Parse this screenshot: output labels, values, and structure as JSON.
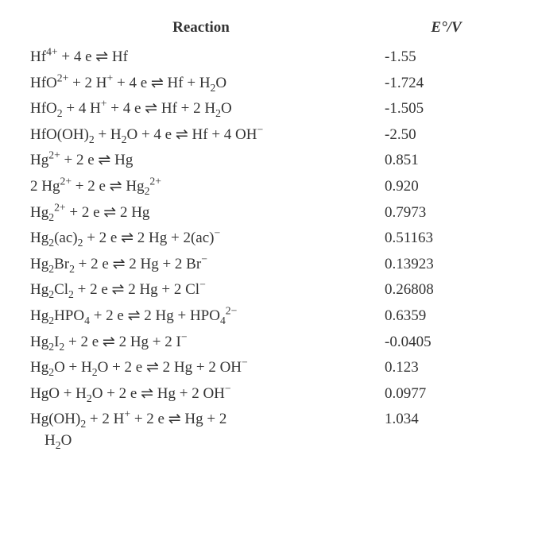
{
  "header": {
    "reaction": "Reaction",
    "potential": "E°/V"
  },
  "rows": [
    {
      "reaction": "Hf<sup>4+</sup> + 4 e ⇌ Hf",
      "potential": "-1.55"
    },
    {
      "reaction": "HfO<sup>2+</sup> + 2 H<sup>+</sup> + 4 e ⇌ Hf + H<sub>2</sub>O",
      "potential": "-1.724"
    },
    {
      "reaction": "HfO<sub>2</sub> + 4 H<sup>+</sup> + 4 e ⇌ Hf + 2 H<sub>2</sub>O",
      "potential": "-1.505"
    },
    {
      "reaction": "HfO(OH)<sub>2</sub> + H<sub>2</sub>O + 4 e ⇌ Hf + 4 OH<sup>−</sup>",
      "potential": "-2.50"
    },
    {
      "reaction": "Hg<sup>2+</sup> + 2 e ⇌ Hg",
      "potential": "0.851"
    },
    {
      "reaction": "2 Hg<sup>2+</sup> + 2 e ⇌ Hg<sub>2</sub><sup>2+</sup>",
      "potential": "0.920"
    },
    {
      "reaction": "Hg<sub>2</sub><sup>2+</sup> + 2 e ⇌ 2 Hg",
      "potential": "0.7973"
    },
    {
      "reaction": "Hg<sub>2</sub>(ac)<sub>2</sub> + 2 e ⇌ 2 Hg + 2(ac)<sup>−</sup>",
      "potential": "0.51163"
    },
    {
      "reaction": "Hg<sub>2</sub>Br<sub>2</sub> + 2 e ⇌ 2 Hg + 2 Br<sup>−</sup>",
      "potential": "0.13923"
    },
    {
      "reaction": "Hg<sub>2</sub>Cl<sub>2</sub> + 2 e ⇌ 2 Hg + 2 Cl<sup>−</sup>",
      "potential": "0.26808"
    },
    {
      "reaction": "Hg<sub>2</sub>HPO<sub>4</sub> + 2 e ⇌ 2 Hg + HPO<sub>4</sub><sup>2−</sup>",
      "potential": "0.6359"
    },
    {
      "reaction": "Hg<sub>2</sub>I<sub>2</sub> + 2 e ⇌ 2 Hg + 2 I<sup>−</sup>",
      "potential": "-0.0405"
    },
    {
      "reaction": "Hg<sub>2</sub>O + H<sub>2</sub>O + 2 e ⇌ 2 Hg + 2 OH<sup>−</sup>",
      "potential": "0.123"
    },
    {
      "reaction": "HgO + H<sub>2</sub>O + 2 e ⇌ Hg + 2 OH<sup>−</sup>",
      "potential": "0.0977"
    },
    {
      "reaction": "Hg(OH)<sub>2</sub> + 2 H<sup>+</sup> + 2 e ⇌ Hg + 2<br><span class=\"indent\"></span>H<sub>2</sub>O",
      "potential": "1.034"
    }
  ]
}
